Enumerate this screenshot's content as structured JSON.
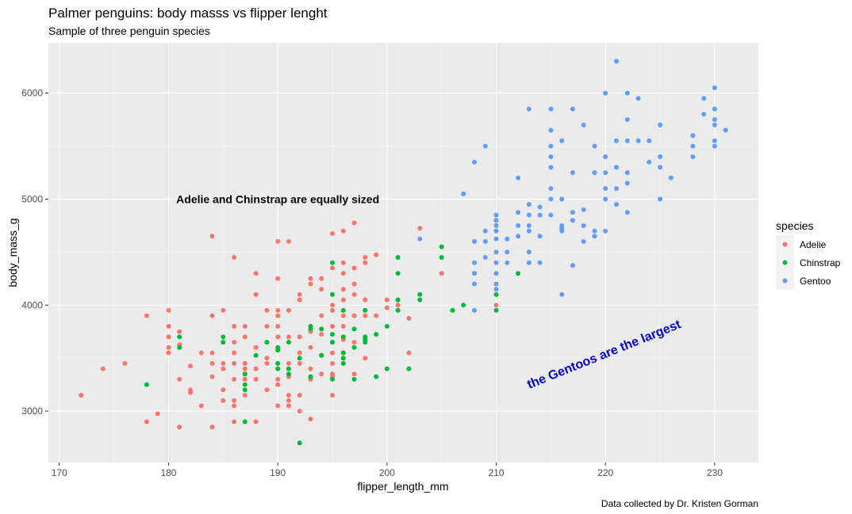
{
  "chart_data": {
    "type": "scatter",
    "title": "Palmer penguins: body masss vs flipper lenght",
    "subtitle": "Sample of three penguin species",
    "xlabel": "flipper_length_mm",
    "ylabel": "body_mass_g",
    "caption": "Data collected by Dr. Kristen Gorman",
    "xlim": [
      169,
      234
    ],
    "ylim": [
      2515,
      6475
    ],
    "x_ticks": [
      170,
      180,
      190,
      200,
      210,
      220,
      230
    ],
    "y_ticks": [
      3000,
      4000,
      5000,
      6000
    ],
    "grid": true,
    "legend": {
      "title": "species",
      "position": "right"
    },
    "annotations": [
      {
        "text": "Adelie and Chinstrap are equally sized",
        "x": 190,
        "y": 5000,
        "color": "#000000",
        "angle": 0
      },
      {
        "text": "the Gentoos are the largest",
        "x": 220,
        "y": 3500,
        "color": "#0000cd",
        "angle": 22
      }
    ],
    "series": [
      {
        "name": "Adelie",
        "color": "#F8766D",
        "points": [
          [
            172,
            3150
          ],
          [
            174,
            3400
          ],
          [
            176,
            3450
          ],
          [
            178,
            3900
          ],
          [
            178,
            2900
          ],
          [
            179,
            2975
          ],
          [
            180,
            3550
          ],
          [
            180,
            3600
          ],
          [
            180,
            3700
          ],
          [
            180,
            3800
          ],
          [
            180,
            3950
          ],
          [
            181,
            2850
          ],
          [
            181,
            3300
          ],
          [
            181,
            3625
          ],
          [
            181,
            3750
          ],
          [
            182,
            3175
          ],
          [
            182,
            3200
          ],
          [
            182,
            3425
          ],
          [
            183,
            3050
          ],
          [
            183,
            3550
          ],
          [
            184,
            2850
          ],
          [
            184,
            3325
          ],
          [
            184,
            3450
          ],
          [
            184,
            3550
          ],
          [
            184,
            3900
          ],
          [
            184,
            4650
          ],
          [
            185,
            3100
          ],
          [
            185,
            3200
          ],
          [
            185,
            3400
          ],
          [
            185,
            3450
          ],
          [
            185,
            3650
          ],
          [
            185,
            3950
          ],
          [
            186,
            2900
          ],
          [
            186,
            3050
          ],
          [
            186,
            3100
          ],
          [
            186,
            3300
          ],
          [
            186,
            3450
          ],
          [
            186,
            3550
          ],
          [
            186,
            3650
          ],
          [
            186,
            3800
          ],
          [
            186,
            4450
          ],
          [
            187,
            3150
          ],
          [
            187,
            3300
          ],
          [
            187,
            3350
          ],
          [
            187,
            3400
          ],
          [
            187,
            3450
          ],
          [
            187,
            3700
          ],
          [
            187,
            3800
          ],
          [
            188,
            2900
          ],
          [
            188,
            3300
          ],
          [
            188,
            3400
          ],
          [
            188,
            3600
          ],
          [
            188,
            4100
          ],
          [
            188,
            4300
          ],
          [
            189,
            3200
          ],
          [
            189,
            3450
          ],
          [
            189,
            3500
          ],
          [
            189,
            3800
          ],
          [
            189,
            3950
          ],
          [
            190,
            3050
          ],
          [
            190,
            3250
          ],
          [
            190,
            3300
          ],
          [
            190,
            3450
          ],
          [
            190,
            3600
          ],
          [
            190,
            3700
          ],
          [
            190,
            3800
          ],
          [
            190,
            3900
          ],
          [
            190,
            3950
          ],
          [
            190,
            4250
          ],
          [
            190,
            4600
          ],
          [
            191,
            3050
          ],
          [
            191,
            3100
          ],
          [
            191,
            3150
          ],
          [
            191,
            3325
          ],
          [
            191,
            3450
          ],
          [
            191,
            3700
          ],
          [
            191,
            3950
          ],
          [
            191,
            4600
          ],
          [
            192,
            3000
          ],
          [
            192,
            3150
          ],
          [
            192,
            3450
          ],
          [
            192,
            3550
          ],
          [
            192,
            3700
          ],
          [
            192,
            4050
          ],
          [
            192,
            4100
          ],
          [
            193,
            2925
          ],
          [
            193,
            3300
          ],
          [
            193,
            3400
          ],
          [
            193,
            3600
          ],
          [
            193,
            3750
          ],
          [
            193,
            3800
          ],
          [
            193,
            4200
          ],
          [
            193,
            4250
          ],
          [
            194,
            3350
          ],
          [
            194,
            3525
          ],
          [
            194,
            3725
          ],
          [
            194,
            3900
          ],
          [
            194,
            4150
          ],
          [
            194,
            4250
          ],
          [
            195,
            3150
          ],
          [
            195,
            3325
          ],
          [
            195,
            3350
          ],
          [
            195,
            3450
          ],
          [
            195,
            3550
          ],
          [
            195,
            3650
          ],
          [
            195,
            3800
          ],
          [
            195,
            3950
          ],
          [
            195,
            4000
          ],
          [
            195,
            4350
          ],
          [
            195,
            4675
          ],
          [
            196,
            3500
          ],
          [
            196,
            3550
          ],
          [
            196,
            3675
          ],
          [
            196,
            3800
          ],
          [
            196,
            3900
          ],
          [
            196,
            4050
          ],
          [
            196,
            4150
          ],
          [
            196,
            4300
          ],
          [
            196,
            4400
          ],
          [
            196,
            4700
          ],
          [
            197,
            3350
          ],
          [
            197,
            3650
          ],
          [
            197,
            3900
          ],
          [
            197,
            4100
          ],
          [
            197,
            4200
          ],
          [
            197,
            4350
          ],
          [
            197,
            4775
          ],
          [
            198,
            3500
          ],
          [
            198,
            3900
          ],
          [
            198,
            4050
          ],
          [
            198,
            4400
          ],
          [
            198,
            4450
          ],
          [
            199,
            3900
          ],
          [
            199,
            4475
          ],
          [
            200,
            3975
          ],
          [
            200,
            4050
          ],
          [
            201,
            4000
          ],
          [
            202,
            3550
          ],
          [
            202,
            3875
          ],
          [
            203,
            4725
          ],
          [
            205,
            4300
          ],
          [
            208,
            4300
          ],
          [
            210,
            4000
          ]
        ]
      },
      {
        "name": "Chinstrap",
        "color": "#00BA38",
        "points": [
          [
            178,
            3250
          ],
          [
            181,
            3600
          ],
          [
            181,
            3700
          ],
          [
            185,
            3650
          ],
          [
            185,
            3700
          ],
          [
            187,
            2900
          ],
          [
            187,
            3200
          ],
          [
            187,
            3250
          ],
          [
            187,
            3350
          ],
          [
            188,
            3525
          ],
          [
            189,
            3650
          ],
          [
            190,
            3400
          ],
          [
            190,
            3450
          ],
          [
            190,
            3575
          ],
          [
            190,
            3600
          ],
          [
            191,
            3350
          ],
          [
            191,
            3400
          ],
          [
            191,
            3650
          ],
          [
            192,
            2700
          ],
          [
            192,
            3500
          ],
          [
            193,
            3325
          ],
          [
            193,
            3775
          ],
          [
            193,
            3800
          ],
          [
            194,
            3525
          ],
          [
            194,
            3775
          ],
          [
            195,
            3300
          ],
          [
            195,
            3650
          ],
          [
            195,
            3725
          ],
          [
            195,
            4100
          ],
          [
            195,
            4400
          ],
          [
            196,
            3450
          ],
          [
            196,
            3500
          ],
          [
            196,
            3550
          ],
          [
            196,
            3700
          ],
          [
            196,
            3950
          ],
          [
            197,
            3300
          ],
          [
            197,
            3600
          ],
          [
            197,
            3775
          ],
          [
            198,
            3650
          ],
          [
            198,
            3675
          ],
          [
            198,
            3700
          ],
          [
            198,
            3950
          ],
          [
            199,
            3325
          ],
          [
            199,
            3725
          ],
          [
            200,
            3400
          ],
          [
            200,
            3800
          ],
          [
            201,
            3950
          ],
          [
            201,
            4050
          ],
          [
            201,
            4300
          ],
          [
            201,
            4450
          ],
          [
            202,
            3400
          ],
          [
            203,
            4050
          ],
          [
            203,
            4100
          ],
          [
            205,
            4450
          ],
          [
            205,
            4550
          ],
          [
            206,
            3950
          ],
          [
            207,
            4000
          ],
          [
            210,
            3950
          ],
          [
            210,
            4100
          ],
          [
            210,
            4800
          ],
          [
            212,
            4300
          ]
        ]
      },
      {
        "name": "Gentoo",
        "color": "#619CFF",
        "points": [
          [
            203,
            4625
          ],
          [
            207,
            5050
          ],
          [
            208,
            3950
          ],
          [
            208,
            4200
          ],
          [
            208,
            4300
          ],
          [
            208,
            4400
          ],
          [
            208,
            4600
          ],
          [
            208,
            5350
          ],
          [
            209,
            4450
          ],
          [
            209,
            4600
          ],
          [
            209,
            4700
          ],
          [
            209,
            5500
          ],
          [
            210,
            4150
          ],
          [
            210,
            4200
          ],
          [
            210,
            4300
          ],
          [
            210,
            4400
          ],
          [
            210,
            4500
          ],
          [
            210,
            4625
          ],
          [
            210,
            4700
          ],
          [
            210,
            4750
          ],
          [
            210,
            4800
          ],
          [
            210,
            4850
          ],
          [
            211,
            4400
          ],
          [
            211,
            4500
          ],
          [
            211,
            4625
          ],
          [
            212,
            4650
          ],
          [
            212,
            4750
          ],
          [
            212,
            4875
          ],
          [
            212,
            5200
          ],
          [
            213,
            4400
          ],
          [
            213,
            4500
          ],
          [
            213,
            4700
          ],
          [
            213,
            4750
          ],
          [
            213,
            4850
          ],
          [
            213,
            4950
          ],
          [
            213,
            5850
          ],
          [
            214,
            4400
          ],
          [
            214,
            4650
          ],
          [
            214,
            4850
          ],
          [
            214,
            4925
          ],
          [
            215,
            4850
          ],
          [
            215,
            5000
          ],
          [
            215,
            5100
          ],
          [
            215,
            5300
          ],
          [
            215,
            5400
          ],
          [
            215,
            5500
          ],
          [
            215,
            5650
          ],
          [
            215,
            5850
          ],
          [
            216,
            4100
          ],
          [
            216,
            4700
          ],
          [
            216,
            4725
          ],
          [
            216,
            4750
          ],
          [
            216,
            5000
          ],
          [
            216,
            5550
          ],
          [
            217,
            4375
          ],
          [
            217,
            4800
          ],
          [
            217,
            4875
          ],
          [
            217,
            5250
          ],
          [
            217,
            5850
          ],
          [
            218,
            4600
          ],
          [
            218,
            4750
          ],
          [
            218,
            4900
          ],
          [
            218,
            5700
          ],
          [
            219,
            4650
          ],
          [
            219,
            4700
          ],
          [
            219,
            5250
          ],
          [
            219,
            5500
          ],
          [
            220,
            4700
          ],
          [
            220,
            5000
          ],
          [
            220,
            5100
          ],
          [
            220,
            5250
          ],
          [
            220,
            5400
          ],
          [
            220,
            6000
          ],
          [
            221,
            4950
          ],
          [
            221,
            5100
          ],
          [
            221,
            5300
          ],
          [
            221,
            5550
          ],
          [
            221,
            6300
          ],
          [
            222,
            4875
          ],
          [
            222,
            5150
          ],
          [
            222,
            5250
          ],
          [
            222,
            5550
          ],
          [
            222,
            5750
          ],
          [
            222,
            6000
          ],
          [
            223,
            5550
          ],
          [
            223,
            5950
          ],
          [
            224,
            5350
          ],
          [
            224,
            5550
          ],
          [
            225,
            5000
          ],
          [
            225,
            5300
          ],
          [
            225,
            5400
          ],
          [
            225,
            5700
          ],
          [
            226,
            5200
          ],
          [
            228,
            5400
          ],
          [
            228,
            5500
          ],
          [
            228,
            5600
          ],
          [
            229,
            5800
          ],
          [
            229,
            5950
          ],
          [
            230,
            5500
          ],
          [
            230,
            5550
          ],
          [
            230,
            5700
          ],
          [
            230,
            5750
          ],
          [
            230,
            5850
          ],
          [
            230,
            6050
          ],
          [
            231,
            5650
          ]
        ]
      }
    ]
  }
}
